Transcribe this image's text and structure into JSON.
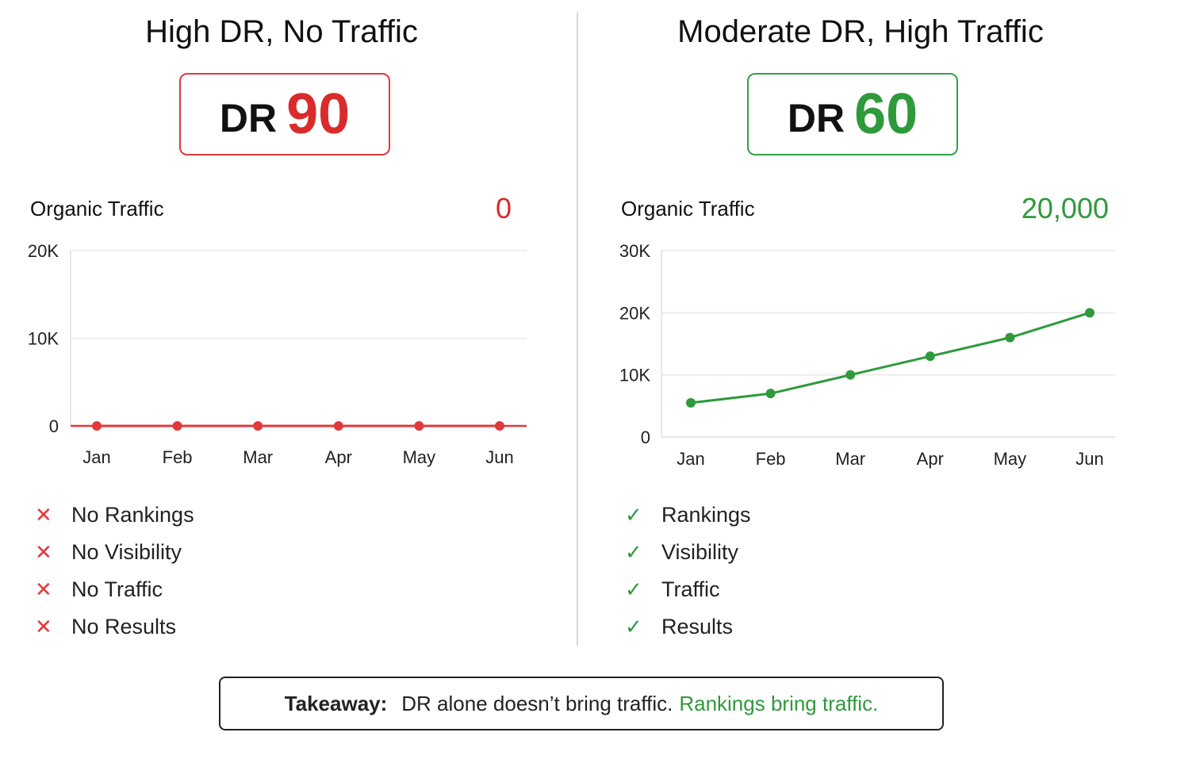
{
  "left": {
    "title": "High DR, No Traffic",
    "dr_label": "DR",
    "dr_value": "90",
    "traffic_label": "Organic Traffic",
    "traffic_value": "0",
    "items": [
      {
        "mark": "✕",
        "text": "No Rankings"
      },
      {
        "mark": "✕",
        "text": "No Visibility"
      },
      {
        "mark": "✕",
        "text": "No Traffic"
      },
      {
        "mark": "✕",
        "text": "No Results"
      }
    ]
  },
  "right": {
    "title": "Moderate DR, High Traffic",
    "dr_label": "DR",
    "dr_value": "60",
    "traffic_label": "Organic Traffic",
    "traffic_value": "20,000",
    "items": [
      {
        "mark": "✓",
        "text": "Rankings"
      },
      {
        "mark": "✓",
        "text": "Visibility"
      },
      {
        "mark": "✓",
        "text": "Traffic"
      },
      {
        "mark": "✓",
        "text": "Results"
      }
    ]
  },
  "takeaway": {
    "label": "Takeaway:",
    "text": "DR alone doesn’t bring traffic.",
    "highlight": "Rankings bring traffic."
  },
  "colors": {
    "red": "#e0393b",
    "green": "#2e9a3b"
  },
  "chart_data": [
    {
      "type": "line",
      "categories": [
        "Jan",
        "Feb",
        "Mar",
        "Apr",
        "May",
        "Jun"
      ],
      "series": [
        {
          "values": [
            0,
            0,
            0,
            0,
            0,
            0
          ]
        }
      ],
      "ylim": [
        0,
        20000
      ],
      "yticks": [
        0,
        10000,
        20000
      ],
      "ytick_labels": [
        "0",
        "10K",
        "20K"
      ],
      "grid": true,
      "color": "#e0393b"
    },
    {
      "type": "line",
      "categories": [
        "Jan",
        "Feb",
        "Mar",
        "Apr",
        "May",
        "Jun"
      ],
      "series": [
        {
          "values": [
            5500,
            7000,
            10000,
            13000,
            16000,
            20000
          ]
        }
      ],
      "ylim": [
        0,
        30000
      ],
      "yticks": [
        0,
        10000,
        20000,
        30000
      ],
      "ytick_labels": [
        "0",
        "10K",
        "20K",
        "30K"
      ],
      "grid": true,
      "color": "#2e9a3b"
    }
  ]
}
